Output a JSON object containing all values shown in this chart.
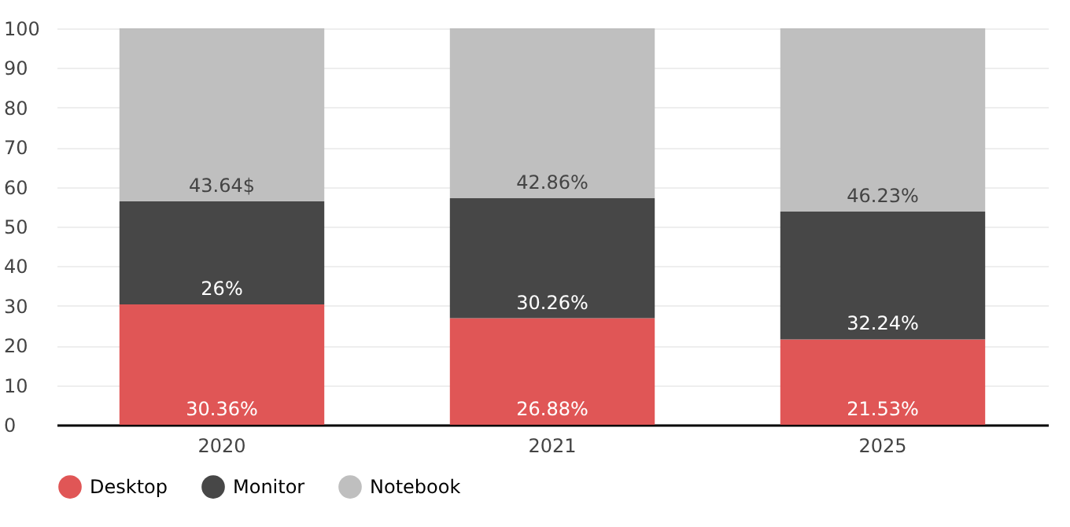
{
  "chart_data": {
    "type": "bar",
    "stacked": true,
    "categories": [
      "2020",
      "2021",
      "2025"
    ],
    "series": [
      {
        "name": "Desktop",
        "color": "#e05656",
        "values": [
          30.36,
          26.88,
          21.53
        ],
        "value_labels": [
          "30.36%",
          "26.88%",
          "21.53%"
        ]
      },
      {
        "name": "Monitor",
        "color": "#474747",
        "values": [
          26,
          30.26,
          32.24
        ],
        "value_labels": [
          "26%",
          "30.26%",
          "32.24%"
        ]
      },
      {
        "name": "Notebook",
        "color": "#bfbfbf",
        "values": [
          43.64,
          42.86,
          46.23
        ],
        "value_labels": [
          "43.64$",
          "42.86%",
          "46.23%"
        ]
      }
    ],
    "ylim": [
      0,
      100
    ],
    "yticks": [
      0,
      10,
      20,
      30,
      40,
      50,
      60,
      70,
      80,
      90,
      100
    ],
    "grid": "y",
    "legend": "bottom"
  }
}
